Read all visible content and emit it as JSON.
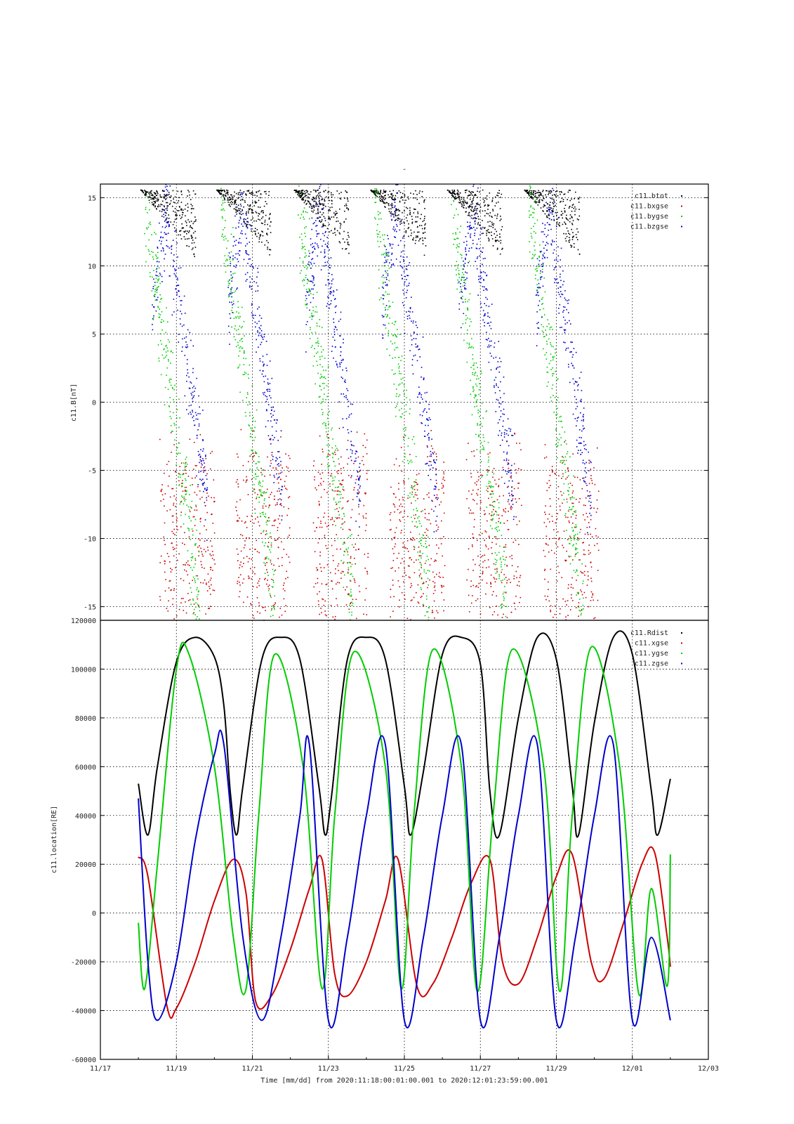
{
  "chart_data": [
    {
      "type": "scatter",
      "title": "-",
      "ylabel": "c11.B[nT]",
      "xlim": [
        "2020-11-17",
        "2020-12-03"
      ],
      "ylim": [
        -16,
        16
      ],
      "yticks": [
        15,
        10,
        5,
        0,
        -5,
        -10,
        -15
      ],
      "grid": true,
      "legend_position": "top-right",
      "series": [
        {
          "name": "c11.btot",
          "color": "#000000"
        },
        {
          "name": "c11.bxgse",
          "color": "#cc0000"
        },
        {
          "name": "c11.bygse",
          "color": "#00cc00"
        },
        {
          "name": "c11.bzgse",
          "color": "#0000cc"
        }
      ]
    },
    {
      "type": "line",
      "ylabel": "c11.location[RE]",
      "xlabel": "Time [mm/dd]  from 2020:11:18:00:01:00.001  to  2020:12:01:23:59:00.001",
      "xlim": [
        "2020-11-17",
        "2020-12-03"
      ],
      "ylim": [
        -60000,
        120000
      ],
      "yticks": [
        120000,
        100000,
        80000,
        60000,
        40000,
        20000,
        0,
        -20000,
        -40000,
        -60000
      ],
      "xticks": [
        "11/17",
        "11/19",
        "11/21",
        "11/23",
        "11/25",
        "11/27",
        "11/29",
        "12/01",
        "12/03"
      ],
      "grid": true,
      "legend_position": "top-right",
      "series": [
        {
          "name": "c11.Rdist",
          "color": "#000000",
          "x": [
            "11/18 00:00",
            "11/18 06:00",
            "11/18 12:00",
            "11/19 00:00",
            "11/19 12:00",
            "11/20 00:00",
            "11/20 06:00",
            "11/20 10:00",
            "11/20 14:00",
            "11/20 18:00",
            "11/21 06:00",
            "11/21 18:00",
            "11/22 06:00",
            "11/22 18:00",
            "11/22 22:00",
            "11/23 02:00",
            "11/23 12:00",
            "11/24 00:00",
            "11/24 12:00",
            "11/25 00:00",
            "11/25 04:00",
            "11/25 12:00",
            "11/26 00:00",
            "11/26 12:00",
            "11/27 00:00",
            "11/27 06:00",
            "11/27 12:00",
            "11/28 00:00",
            "11/28 12:00",
            "11/29 00:00",
            "11/29 10:00",
            "11/29 14:00",
            "11/30 00:00",
            "11/30 12:00",
            "12/01 00:00",
            "12/01 12:00",
            "12/01 16:00",
            "12/02 00:00"
          ],
          "y": [
            53000,
            32000,
            60000,
            103000,
            113000,
            105000,
            85000,
            50000,
            32000,
            52000,
            104000,
            113000,
            104000,
            52000,
            32000,
            48000,
            104000,
            113000,
            104000,
            52000,
            32000,
            58000,
            106000,
            113000,
            102000,
            50000,
            32000,
            80000,
            113000,
            104000,
            52000,
            32000,
            78000,
            113000,
            106000,
            50000,
            32000,
            55000
          ]
        },
        {
          "name": "c11.xgse",
          "color": "#cc0000",
          "x": [
            "11/18 00:00",
            "11/18 06:00",
            "11/18 18:00",
            "11/19 00:00",
            "11/19 12:00",
            "11/20 00:00",
            "11/20 12:00",
            "11/20 20:00",
            "11/21 02:00",
            "11/21 12:00",
            "11/22 00:00",
            "11/22 12:00",
            "11/22 20:00",
            "11/23 04:00",
            "11/23 12:00",
            "11/24 00:00",
            "11/24 12:00",
            "11/24 20:00",
            "11/25 08:00",
            "11/25 18:00",
            "11/26 06:00",
            "11/26 18:00",
            "11/27 06:00",
            "11/27 14:00",
            "11/28 00:00",
            "11/28 12:00",
            "11/29 00:00",
            "11/29 10:00",
            "11/29 22:00",
            "11/30 06:00",
            "11/30 18:00",
            "12/01 06:00",
            "12/01 14:00",
            "12/01 22:00",
            "12/02 00:00"
          ],
          "y": [
            23000,
            15000,
            -38000,
            -39000,
            -20000,
            5000,
            22000,
            8000,
            -36000,
            -34000,
            -15000,
            10000,
            22000,
            -25000,
            -34000,
            -20000,
            5000,
            22000,
            -30000,
            -29000,
            -10000,
            12000,
            22000,
            -20000,
            -29000,
            -10000,
            15000,
            24000,
            -20000,
            -27000,
            -5000,
            20000,
            25000,
            -10000,
            -22000
          ]
        },
        {
          "name": "c11.ygse",
          "color": "#00cc00",
          "x": [
            "11/18 00:00",
            "11/18 04:00",
            "11/18 12:00",
            "11/19 00:00",
            "11/19 08:00",
            "11/20 00:00",
            "11/20 12:00",
            "11/20 20:00",
            "11/21 04:00",
            "11/21 14:00",
            "11/22 08:00",
            "11/22 20:00",
            "11/23 04:00",
            "11/23 16:00",
            "11/24 12:00",
            "11/24 22:00",
            "11/25 06:00",
            "11/25 18:00",
            "11/26 12:00",
            "11/26 22:00",
            "11/27 08:00",
            "11/27 20:00",
            "11/28 16:00",
            "11/29 02:00",
            "11/29 10:00",
            "11/29 22:00",
            "11/30 16:00",
            "12/01 04:00",
            "12/01 12:00",
            "12/01 22:00",
            "12/02 00:00"
          ],
          "y": [
            -4000,
            -31000,
            20000,
            100000,
            106000,
            60000,
            -10000,
            -31000,
            40000,
            106000,
            60000,
            -31000,
            40000,
            107000,
            60000,
            -31000,
            40000,
            108000,
            60000,
            -32000,
            40000,
            108000,
            60000,
            -32000,
            40000,
            109000,
            60000,
            -33000,
            10000,
            -30000,
            24000
          ]
        },
        {
          "name": "c11.zgse",
          "color": "#0000cc",
          "x": [
            "11/18 00:00",
            "11/18 06:00",
            "11/18 12:00",
            "11/19 00:00",
            "11/19 12:00",
            "11/20 00:00",
            "11/20 06:00",
            "11/20 18:00",
            "11/21 06:00",
            "11/21 18:00",
            "11/22 06:00",
            "11/22 12:00",
            "11/23 00:00",
            "11/23 12:00",
            "11/24 00:00",
            "11/24 12:00",
            "11/25 00:00",
            "11/25 12:00",
            "11/26 00:00",
            "11/26 12:00",
            "11/27 00:00",
            "11/27 12:00",
            "11/28 00:00",
            "11/28 12:00",
            "11/29 00:00",
            "11/29 12:00",
            "11/30 00:00",
            "11/30 12:00",
            "12/01 00:00",
            "12/01 12:00",
            "12/02 00:00"
          ],
          "y": [
            47000,
            -20000,
            -44000,
            -20000,
            30000,
            65000,
            69000,
            -10000,
            -44000,
            -10000,
            40000,
            69000,
            -44000,
            -10000,
            40000,
            69000,
            -44000,
            -10000,
            40000,
            69000,
            -44000,
            -10000,
            40000,
            69000,
            -44000,
            -10000,
            40000,
            69000,
            -44000,
            -10000,
            -44000
          ]
        }
      ]
    }
  ]
}
